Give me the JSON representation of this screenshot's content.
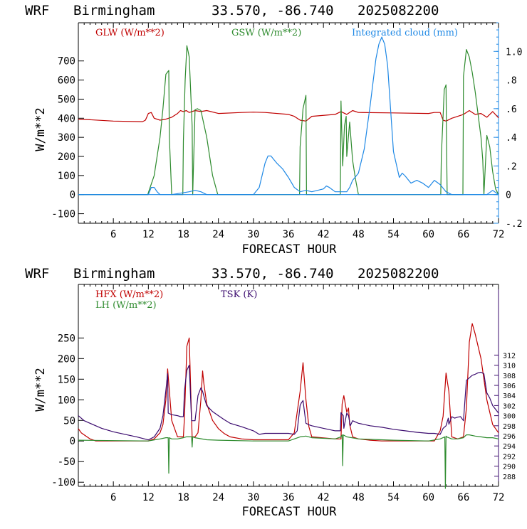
{
  "chart_data": [
    {
      "type": "line",
      "header": {
        "model": "WRF",
        "location": "Birmingham",
        "coords": "33.570, -86.740",
        "run": "2025082200"
      },
      "xlabel": "FORECAST HOUR",
      "ylabel": "W/m**2",
      "xlim": [
        0,
        72
      ],
      "ylim": [
        -150,
        900
      ],
      "y2lim": [
        -0.2,
        1.2
      ],
      "xticks": [
        "6",
        "12",
        "18",
        "24",
        "30",
        "36",
        "42",
        "48",
        "54",
        "60",
        "66",
        "72"
      ],
      "yticks": [
        "-100",
        "0",
        "100",
        "200",
        "300",
        "400",
        "500",
        "600",
        "700"
      ],
      "y2ticks": [
        "-.2",
        "0",
        ".2",
        ".4",
        ".6",
        ".8",
        "1.0"
      ],
      "y2ticks_values": [
        -0.2,
        0,
        0.2,
        0.4,
        0.6,
        0.8,
        1.0
      ],
      "legend": [
        "GLW (W/m**2)",
        "GSW (W/m**2)",
        "Integrated cloud (mm)"
      ],
      "colors": {
        "GLW": "#c00000",
        "GSW": "#2e8b2e",
        "cloud": "#1e88e5",
        "zero": "#1e88e5"
      },
      "series": [
        {
          "name": "GLW (W/m**2)",
          "axis": "left",
          "x": [
            0,
            2,
            6,
            11,
            11.5,
            12,
            12.5,
            13,
            14,
            15,
            16,
            17,
            17.5,
            18,
            18.5,
            19,
            20,
            21,
            22,
            24,
            28,
            30,
            32,
            36,
            37,
            38,
            39,
            40,
            44,
            45,
            46,
            47,
            48,
            54,
            60,
            61,
            62,
            62.5,
            63,
            64,
            66,
            67,
            68,
            69,
            70,
            71,
            72
          ],
          "y": [
            395,
            392,
            385,
            382,
            390,
            425,
            430,
            400,
            390,
            395,
            405,
            425,
            440,
            435,
            440,
            430,
            440,
            435,
            440,
            425,
            430,
            432,
            430,
            420,
            410,
            390,
            385,
            410,
            420,
            435,
            420,
            440,
            430,
            428,
            425,
            430,
            430,
            390,
            385,
            400,
            420,
            440,
            420,
            425,
            405,
            435,
            402
          ]
        },
        {
          "name": "GSW (W/m**2)",
          "axis": "left",
          "x": [
            0,
            11.9,
            12,
            13,
            14,
            14.5,
            15,
            15.5,
            15.6,
            16,
            17.9,
            18,
            18.3,
            18.6,
            18.8,
            19,
            19.5,
            19.6,
            20,
            20.4,
            21,
            22,
            23,
            23.9,
            24,
            37.9,
            38,
            38.5,
            39,
            39.1,
            44.9,
            45,
            45.3,
            45.6,
            45.9,
            46,
            46.5,
            47,
            47.5,
            48,
            62.1,
            62.2,
            62.7,
            63,
            63.1,
            63.2,
            65.9,
            66,
            66.5,
            67,
            67.5,
            68,
            69,
            69.3,
            69.5,
            70,
            70.5,
            71,
            71.5,
            72
          ],
          "y": [
            0,
            0,
            10,
            100,
            300,
            450,
            630,
            650,
            300,
            0,
            0,
            280,
            600,
            780,
            750,
            720,
            360,
            0,
            445,
            450,
            440,
            300,
            100,
            0,
            0,
            0,
            250,
            450,
            520,
            0,
            0,
            490,
            150,
            360,
            410,
            200,
            380,
            180,
            80,
            0,
            0,
            200,
            550,
            575,
            250,
            0,
            0,
            620,
            760,
            720,
            640,
            540,
            300,
            180,
            0,
            310,
            250,
            120,
            30,
            0
          ]
        },
        {
          "name": "Integrated cloud (mm)",
          "axis": "right",
          "x": [
            0,
            12,
            12.5,
            13,
            13.5,
            14,
            16,
            19,
            20,
            21,
            22,
            30,
            31,
            32,
            32.5,
            33,
            34,
            35,
            36,
            37,
            38,
            39,
            40,
            41,
            42,
            42.5,
            43,
            44,
            45,
            46,
            46.5,
            47,
            48,
            49,
            50,
            51,
            51.5,
            52,
            52.5,
            53,
            53.5,
            54,
            55,
            55.5,
            56,
            57,
            58,
            59,
            60,
            61,
            62,
            63,
            64,
            66,
            68,
            70,
            71,
            72
          ],
          "y": [
            0,
            0,
            0.05,
            0.05,
            0.02,
            0,
            0,
            0.02,
            0.03,
            0.02,
            0,
            0,
            0.05,
            0.22,
            0.27,
            0.27,
            0.22,
            0.18,
            0.12,
            0.05,
            0.02,
            0.03,
            0.02,
            0.03,
            0.04,
            0.06,
            0.05,
            0.02,
            0.02,
            0.02,
            0.05,
            0.1,
            0.15,
            0.32,
            0.62,
            0.95,
            1.05,
            1.1,
            1.05,
            0.9,
            0.6,
            0.3,
            0.12,
            0.15,
            0.13,
            0.08,
            0.1,
            0.08,
            0.05,
            0.1,
            0.07,
            0.02,
            0.0,
            0.0,
            0.0,
            0.0,
            0.03,
            0.0
          ]
        },
        {
          "name": "",
          "axis": "left",
          "x": [
            0,
            72
          ],
          "y": [
            0,
            0
          ]
        }
      ]
    },
    {
      "type": "line",
      "header": {
        "model": "WRF",
        "location": "Birmingham",
        "coords": "33.570, -86.740",
        "run": "2025082200"
      },
      "xlabel": "FORECAST HOUR",
      "ylabel": "W/m**2",
      "xlim": [
        0,
        72
      ],
      "ylim": [
        -110,
        380
      ],
      "y2lim": [
        286,
        326
      ],
      "xticks": [
        "6",
        "12",
        "18",
        "24",
        "30",
        "36",
        "42",
        "48",
        "54",
        "60",
        "66",
        "72"
      ],
      "yticks": [
        "-100",
        "-50",
        "0",
        "50",
        "100",
        "150",
        "200",
        "250"
      ],
      "y2ticks": [
        "288",
        "290",
        "292",
        "294",
        "296",
        "298",
        "300",
        "302",
        "304",
        "306",
        "308",
        "310",
        "312"
      ],
      "legend": [
        "HFX (W/m**2)",
        "LH (W/m**2)",
        "TSK (K)"
      ],
      "colors": {
        "HFX": "#c00000",
        "LH": "#2e8b2e",
        "TSK": "#3a0a6e"
      },
      "series": [
        {
          "name": "HFX (W/m**2)",
          "axis": "left",
          "x": [
            0,
            0.5,
            1,
            2,
            3,
            12,
            13,
            14,
            14.5,
            15,
            15.3,
            15.5,
            16,
            17,
            18,
            18.2,
            18.6,
            19,
            19.3,
            19.5,
            20,
            20.5,
            21,
            21.3,
            21.5,
            22,
            23,
            24,
            25,
            26,
            28,
            30,
            36,
            37,
            38,
            38.5,
            39,
            39.5,
            40,
            44,
            45,
            45.2,
            45.5,
            46,
            46.3,
            46.5,
            47,
            48,
            50,
            52,
            54,
            61,
            62,
            62.5,
            63,
            63.5,
            64,
            65,
            66,
            66.5,
            67,
            67.5,
            68,
            69,
            70,
            71,
            72
          ],
          "y": [
            30,
            20,
            15,
            5,
            0,
            0,
            5,
            20,
            40,
            100,
            175,
            140,
            50,
            10,
            10,
            60,
            230,
            250,
            100,
            10,
            10,
            20,
            100,
            170,
            140,
            90,
            50,
            30,
            18,
            10,
            5,
            3,
            3,
            20,
            120,
            190,
            100,
            35,
            10,
            5,
            5,
            90,
            110,
            70,
            80,
            40,
            10,
            5,
            2,
            0,
            0,
            0,
            25,
            60,
            165,
            120,
            10,
            5,
            10,
            80,
            240,
            285,
            260,
            200,
            100,
            40,
            20
          ]
        },
        {
          "name": "LH (W/m**2)",
          "axis": "left",
          "x": [
            0,
            12,
            14,
            15,
            15.4,
            15.5,
            15.6,
            16,
            17,
            18,
            18.5,
            19,
            19.4,
            19.5,
            19.6,
            20,
            22,
            24,
            30,
            36,
            38,
            39,
            40,
            44,
            45,
            45.2,
            45.3,
            45.4,
            46,
            48,
            54,
            60,
            62,
            62.8,
            62.9,
            63,
            63.1,
            64,
            65,
            66,
            66.5,
            67,
            68,
            69,
            70,
            71,
            72
          ],
          "y": [
            2,
            0,
            5,
            8,
            8,
            -78,
            8,
            5,
            5,
            8,
            10,
            10,
            10,
            -15,
            10,
            8,
            3,
            2,
            0,
            0,
            10,
            12,
            8,
            5,
            10,
            15,
            -60,
            15,
            10,
            5,
            2,
            0,
            5,
            10,
            -115,
            12,
            10,
            5,
            5,
            8,
            15,
            15,
            12,
            10,
            8,
            8,
            5
          ]
        },
        {
          "name": "TSK (K)",
          "axis": "right",
          "x": [
            0,
            1,
            2,
            4,
            6,
            8,
            10,
            12,
            13,
            14,
            14.5,
            15,
            15.3,
            15.4,
            16,
            17,
            17.5,
            18,
            18.2,
            18.6,
            19,
            19.4,
            19.5,
            20,
            20.5,
            21,
            21.3,
            21.6,
            22,
            23,
            24,
            25,
            26,
            28,
            30,
            31,
            32,
            36,
            37,
            37.5,
            38,
            38.2,
            38.5,
            39,
            39.5,
            40,
            42,
            44,
            44.9,
            45,
            45.4,
            45.5,
            46,
            46.3,
            46.6,
            47,
            48,
            50,
            52,
            54,
            56,
            58,
            60,
            61,
            62,
            62.5,
            63,
            63.4,
            63.5,
            64,
            64.5,
            65,
            65.5,
            66,
            66.5,
            67,
            67.5,
            68,
            68.5,
            69,
            69.5,
            70,
            70.5,
            71,
            72
          ],
          "y": [
            300.0,
            299.0,
            298.5,
            297.5,
            296.8,
            296.3,
            295.8,
            295.2,
            295.8,
            297.5,
            300.0,
            305.0,
            308.3,
            300.5,
            300.2,
            300.0,
            299.8,
            299.8,
            305.0,
            309.0,
            310.0,
            299.0,
            299.0,
            299.0,
            304.0,
            305.5,
            304.8,
            303.5,
            302.0,
            300.8,
            300.0,
            299.2,
            298.5,
            297.8,
            297.0,
            296.3,
            296.5,
            296.5,
            296.3,
            297.0,
            302.0,
            302.5,
            303.0,
            298.5,
            298.2,
            298.0,
            297.5,
            297.0,
            297.0,
            300.6,
            300.0,
            297.5,
            300.5,
            300.0,
            298.0,
            299.0,
            298.5,
            298.0,
            297.7,
            297.3,
            297.0,
            296.7,
            296.5,
            296.5,
            296.3,
            297.5,
            298.0,
            299.5,
            298.3,
            299.8,
            299.5,
            299.7,
            299.8,
            299.0,
            307.0,
            307.5,
            308.0,
            308.2,
            308.5,
            308.6,
            308.3,
            304.5,
            303.5,
            302.0,
            300.5
          ]
        }
      ]
    }
  ]
}
